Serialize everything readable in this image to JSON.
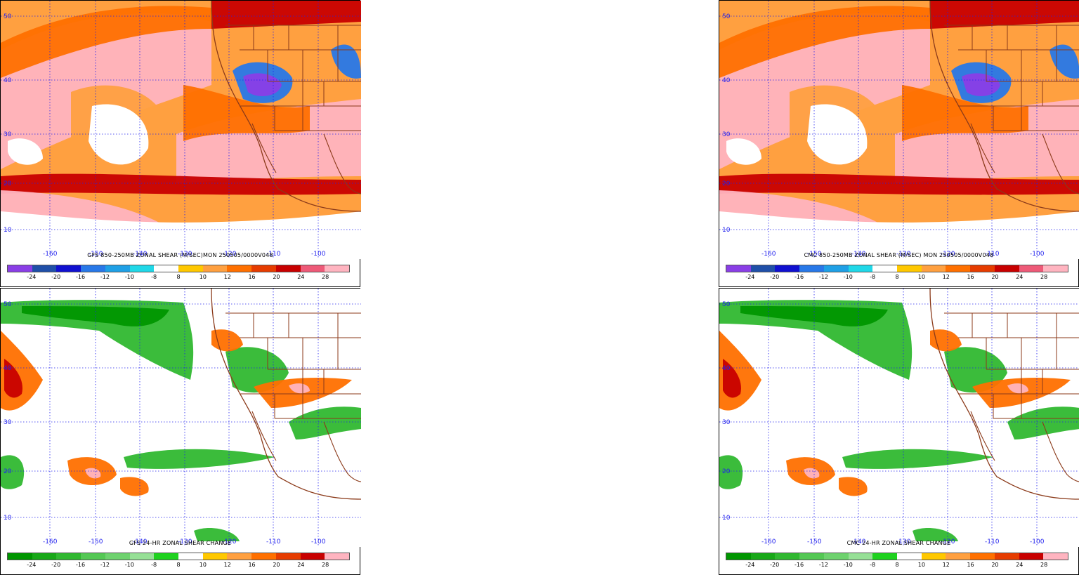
{
  "panels": [
    {
      "id": "gfs-shear",
      "title": "GFS 850-250MB ZONAL SHEAR (M/SEC)MON 250505/0000V048",
      "scheme": "shear"
    },
    {
      "id": "cmc-shear",
      "title": "CMC 850-250MB ZONAL SHEAR (M/SEC) MON 250505/0000V048",
      "scheme": "shear"
    },
    {
      "id": "gfs-change",
      "title": "GFS 24-HR ZONAL SHEAR CHANGE",
      "scheme": "change"
    },
    {
      "id": "cmc-change",
      "title": "CMC 24-HR ZONAL SHEAR CHANGE",
      "scheme": "change"
    }
  ],
  "map_labels": {
    "lon": [
      "-160",
      "-150",
      "-140",
      "-130",
      "-120",
      "-110",
      "-100"
    ],
    "lat": [
      "50",
      "40",
      "30",
      "20",
      "10"
    ]
  },
  "legend_labels": [
    "-24",
    "-20",
    "-16",
    "-12",
    "-10",
    "-8",
    "8",
    "10",
    "12",
    "16",
    "20",
    "24",
    "28"
  ],
  "legend_colors": {
    "shear": [
      "#8a3ee6",
      "#1f4fa8",
      "#1010d0",
      "#2878e8",
      "#1fa0e6",
      "#20d8e8",
      "#ffffff",
      "#ffc800",
      "#ffa040",
      "#ff7000",
      "#e63c00",
      "#c80000",
      "#ee5a78",
      "#ffb4c0"
    ],
    "change": [
      "#009600",
      "#18a818",
      "#30b830",
      "#54c854",
      "#6ed26e",
      "#96e096",
      "#1ed21e",
      "#ffffff",
      "#ffc800",
      "#ffa040",
      "#ff7000",
      "#e63c00",
      "#c80000",
      "#ffb4c0"
    ]
  },
  "colors": {
    "pink": "#ffb4c0",
    "red": "#c80000",
    "orange": "#ff7000",
    "lightorange": "#ffa040",
    "yellow": "#ffc800",
    "blue": "#2878e8",
    "purple": "#8a3ee6",
    "cyan": "#20d8e8",
    "green": "#30b830",
    "darkgreen": "#009600",
    "lightgreen": "#96e096",
    "grid": "#2020ee",
    "border": "#8b3a1a"
  }
}
